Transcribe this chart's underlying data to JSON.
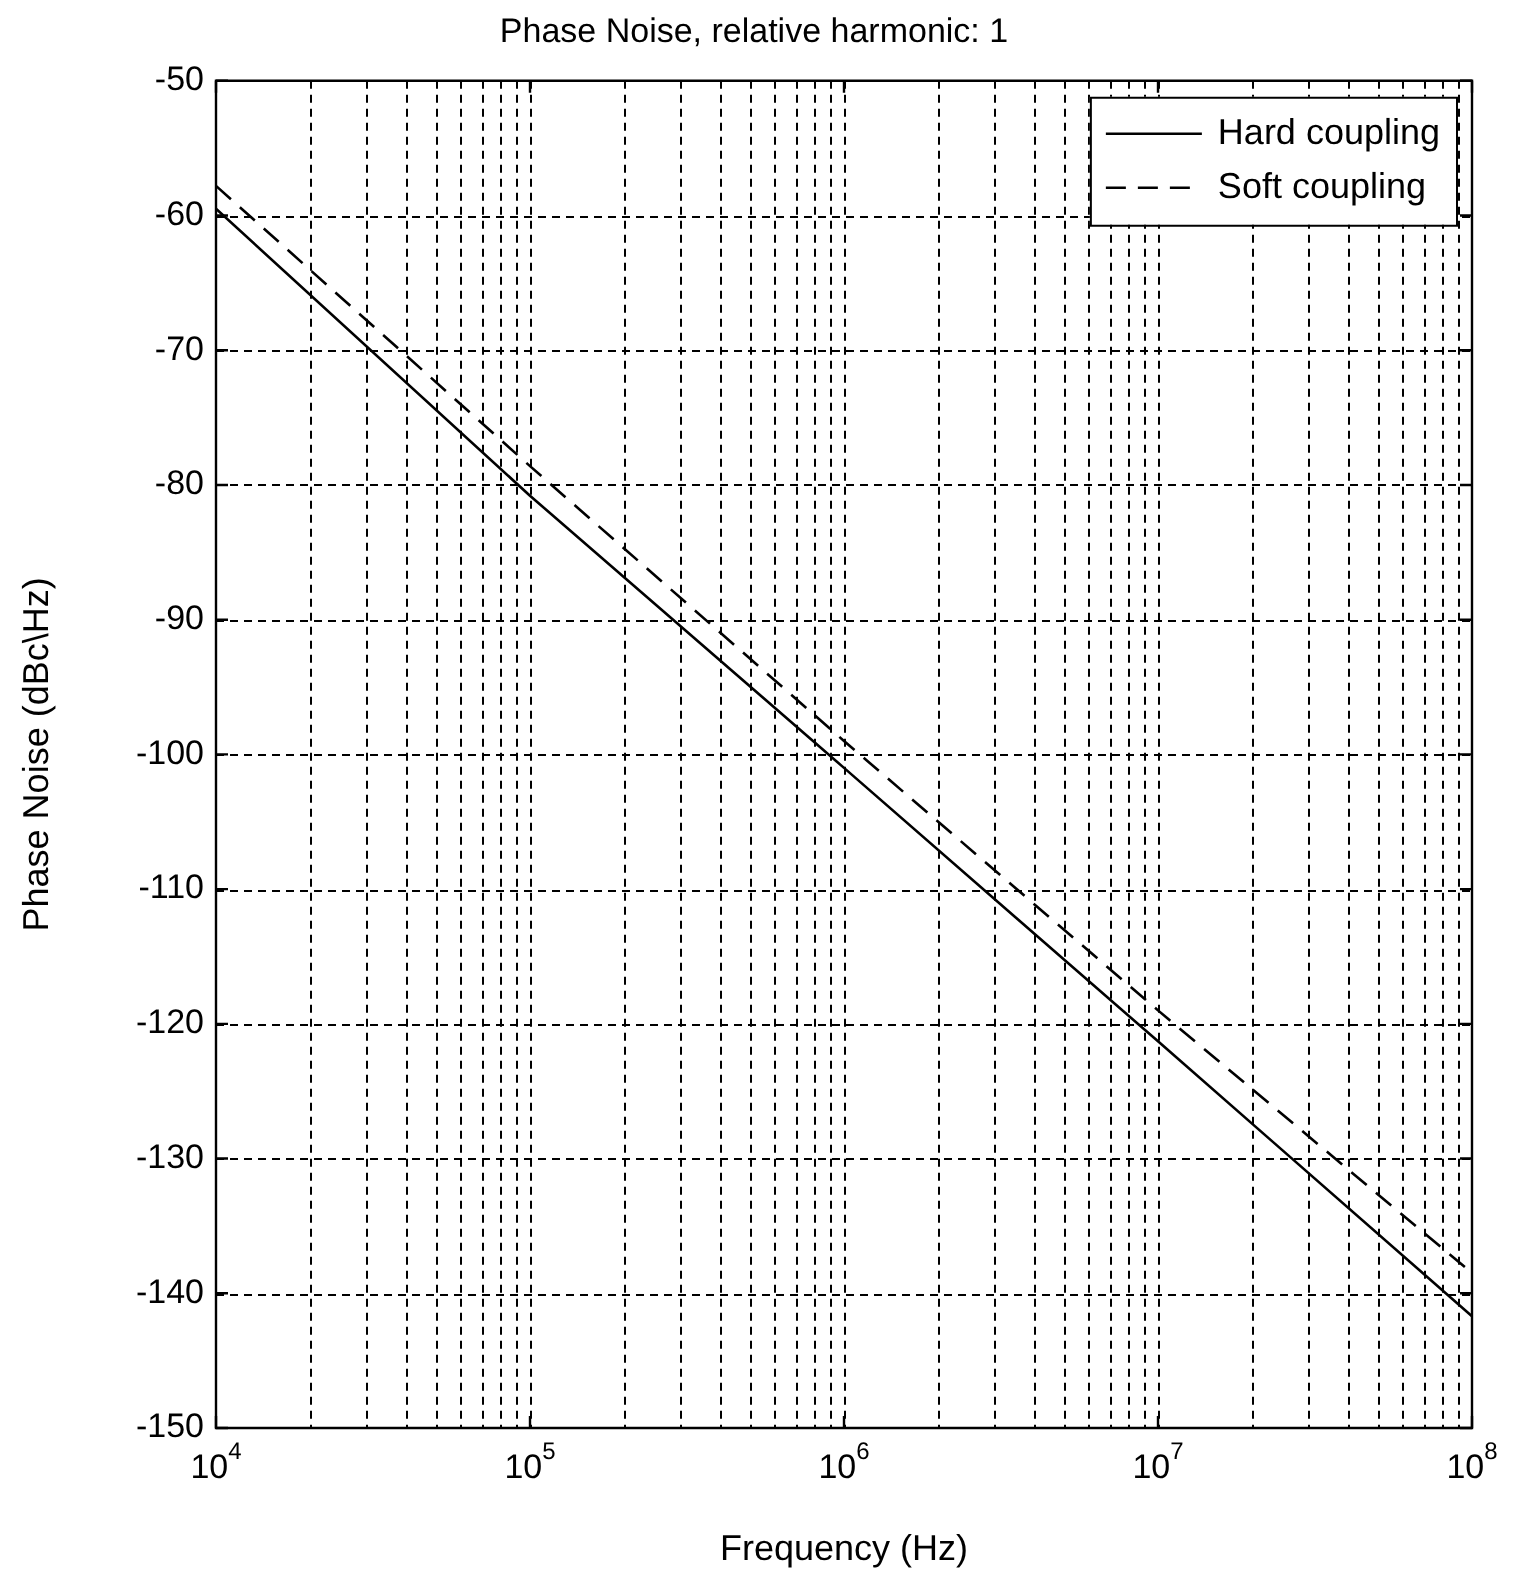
{
  "chart_data": {
    "type": "line",
    "title": "Phase Noise, relative harmonic: 1",
    "xlabel": "Frequency (Hz)",
    "ylabel": "Phase Noise (dBc\\Hz)",
    "x": [
      10000,
      100000,
      1000000,
      10000000,
      100000000
    ],
    "series": [
      {
        "name": "Hard coupling",
        "color": "#000000",
        "line_style": "solid",
        "values": [
          -59.5,
          -80.8,
          -101,
          -121.3,
          -141.7
        ]
      },
      {
        "name": "Soft coupling",
        "color": "#000000",
        "line_style": "dashed",
        "values": [
          -57.8,
          -78.6,
          -99,
          -119,
          -138.5
        ]
      }
    ],
    "log": "x",
    "xlim": [
      10000,
      100000000
    ],
    "xticks": [
      {
        "value": 10000,
        "label": "10$^{4}$"
      },
      {
        "value": 100000,
        "label": "10$^{5}$"
      },
      {
        "value": 1000000,
        "label": "10$^{6}$"
      },
      {
        "value": 10000000,
        "label": "10$^{7}$"
      },
      {
        "value": 100000000,
        "label": "10$^{8}$"
      }
    ],
    "ylim": [
      -150,
      -50
    ],
    "yticks": [
      -150,
      -140,
      -130,
      -120,
      -110,
      -100,
      -90,
      -80,
      -70,
      -60,
      -50
    ],
    "grid": true,
    "legend": "top right"
  }
}
